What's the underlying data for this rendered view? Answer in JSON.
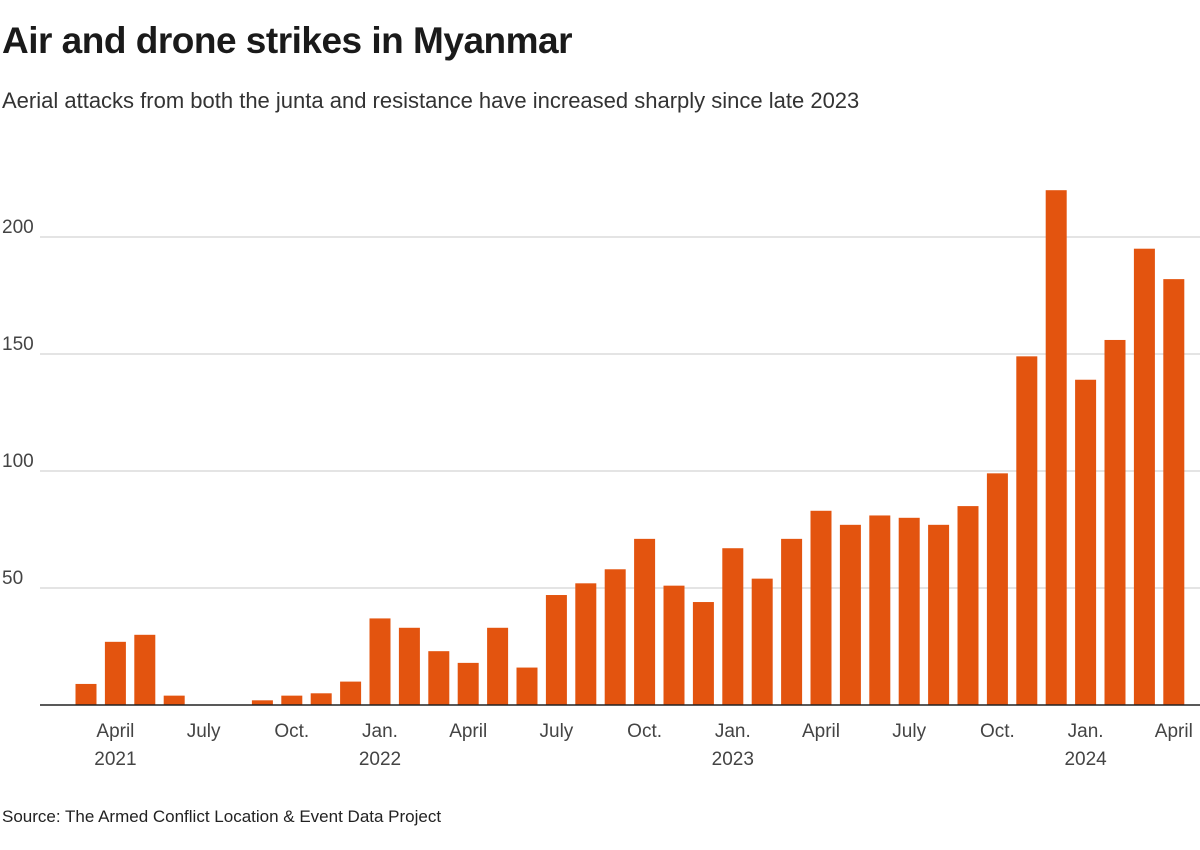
{
  "chart_data": {
    "type": "bar",
    "title": "Air and drone strikes in Myanmar",
    "subtitle": "Aerial attacks from both the junta and resistance have increased sharply since late 2023",
    "source": "Source: The Armed Conflict Location & Event Data Project",
    "xlabel": "",
    "ylabel": "",
    "ylim": [
      0,
      230
    ],
    "yticks": [
      50,
      100,
      150,
      200
    ],
    "grid": true,
    "color": "#e3540f",
    "categories": [
      "Mar 2021",
      "Apr 2021",
      "May 2021",
      "Jun 2021",
      "Jul 2021",
      "Aug 2021",
      "Sep 2021",
      "Oct 2021",
      "Nov 2021",
      "Dec 2021",
      "Jan 2022",
      "Feb 2022",
      "Mar 2022",
      "Apr 2022",
      "May 2022",
      "Jun 2022",
      "Jul 2022",
      "Aug 2022",
      "Sep 2022",
      "Oct 2022",
      "Nov 2022",
      "Dec 2022",
      "Jan 2023",
      "Feb 2023",
      "Mar 2023",
      "Apr 2023",
      "May 2023",
      "Jun 2023",
      "Jul 2023",
      "Aug 2023",
      "Sep 2023",
      "Oct 2023",
      "Nov 2023",
      "Dec 2023",
      "Jan 2024",
      "Feb 2024",
      "Mar 2024",
      "Apr 2024"
    ],
    "values": [
      9,
      27,
      30,
      4,
      0,
      0,
      2,
      4,
      5,
      10,
      37,
      33,
      23,
      18,
      33,
      16,
      47,
      52,
      58,
      71,
      51,
      44,
      67,
      54,
      71,
      83,
      77,
      81,
      80,
      77,
      85,
      99,
      149,
      220,
      139,
      156,
      195,
      182
    ],
    "xticks": [
      {
        "index": 1,
        "label": "April",
        "year": "2021"
      },
      {
        "index": 4,
        "label": "July",
        "year": ""
      },
      {
        "index": 7,
        "label": "Oct.",
        "year": ""
      },
      {
        "index": 10,
        "label": "Jan.",
        "year": "2022"
      },
      {
        "index": 13,
        "label": "April",
        "year": ""
      },
      {
        "index": 16,
        "label": "July",
        "year": ""
      },
      {
        "index": 19,
        "label": "Oct.",
        "year": ""
      },
      {
        "index": 22,
        "label": "Jan.",
        "year": "2023"
      },
      {
        "index": 25,
        "label": "April",
        "year": ""
      },
      {
        "index": 28,
        "label": "July",
        "year": ""
      },
      {
        "index": 31,
        "label": "Oct.",
        "year": ""
      },
      {
        "index": 34,
        "label": "Jan.",
        "year": "2024"
      },
      {
        "index": 37,
        "label": "April",
        "year": ""
      }
    ]
  }
}
